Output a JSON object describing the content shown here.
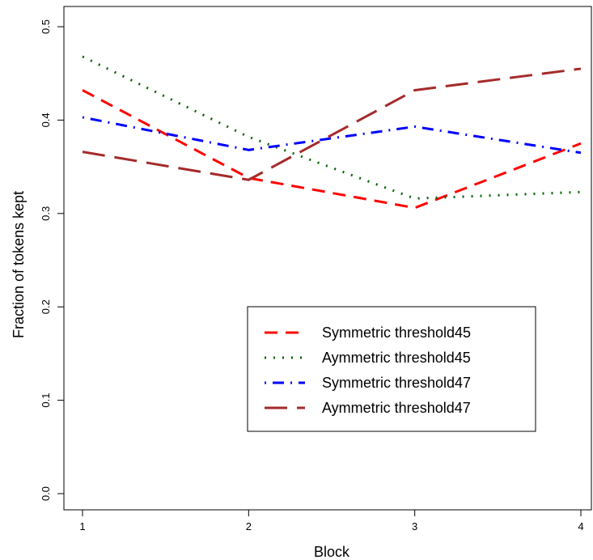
{
  "chart_data": {
    "type": "line",
    "title": "",
    "xlabel": "Block",
    "ylabel": "Fraction of tokens kept",
    "x": [
      1,
      2,
      3,
      4
    ],
    "xticks": [
      "1",
      "2",
      "3",
      "4"
    ],
    "yticks": [
      "0.0",
      "0.1",
      "0.2",
      "0.3",
      "0.4",
      "0.5"
    ],
    "xlim": [
      1,
      4
    ],
    "ylim": [
      0,
      0.5
    ],
    "grid": false,
    "legend_position": "center-right",
    "series": [
      {
        "name": "Symmetric threshold45",
        "values": [
          0.432,
          0.338,
          0.306,
          0.375
        ],
        "color": "#ff0000",
        "dash": "dashed"
      },
      {
        "name": "Aymmetric threshold45",
        "values": [
          0.468,
          0.382,
          0.316,
          0.323
        ],
        "color": "#006400",
        "dash": "dotted"
      },
      {
        "name": "Symmetric threshold47",
        "values": [
          0.403,
          0.368,
          0.393,
          0.365
        ],
        "color": "#0000ff",
        "dash": "dotdash"
      },
      {
        "name": "Aymmetric threshold47",
        "values": [
          0.366,
          0.336,
          0.432,
          0.455
        ],
        "color": "#a52a2a",
        "dash": "longdash"
      }
    ]
  }
}
